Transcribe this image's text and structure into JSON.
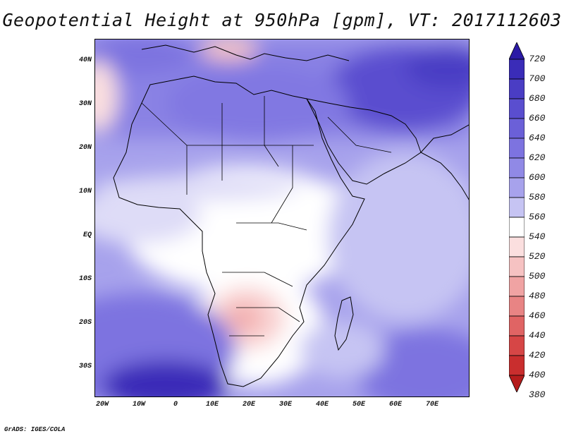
{
  "title": "Geopotential Height at 950hPa [gpm], VT: 2017112603",
  "credit": "GrADS: IGES/COLA",
  "lat_labels": [
    "40N",
    "30N",
    "20N",
    "10N",
    "EQ",
    "10S",
    "20S",
    "30S"
  ],
  "lon_labels": [
    "20W",
    "10W",
    "0",
    "10E",
    "20E",
    "30E",
    "40E",
    "50E",
    "60E",
    "70E"
  ],
  "colorbar": {
    "labels": [
      "720",
      "700",
      "680",
      "660",
      "640",
      "620",
      "600",
      "580",
      "560",
      "540",
      "520",
      "500",
      "480",
      "460",
      "440",
      "420",
      "400",
      "380"
    ],
    "colors": [
      "#2b1aa6",
      "#3a2cb8",
      "#4a3dc4",
      "#5a4ecf",
      "#6b60d8",
      "#7d73e0",
      "#9089e6",
      "#a7a2ec",
      "#c6c4f3",
      "#ffffff",
      "#fbdfdf",
      "#f6c2c2",
      "#f0a3a3",
      "#e88484",
      "#e06464",
      "#d64646",
      "#c92e2e",
      "#b51c1c"
    ]
  },
  "map": {
    "region": "Africa and Middle East",
    "lon_range": [
      -22,
      80
    ],
    "lat_range": [
      -37,
      45
    ]
  }
}
